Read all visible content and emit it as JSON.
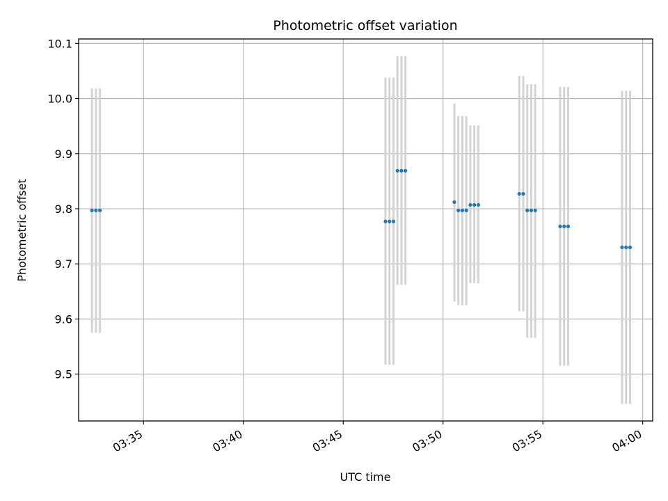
{
  "chart_data": {
    "type": "scatter",
    "title": "Photometric offset variation",
    "xlabel": "UTC time",
    "ylabel": "Photometric offset",
    "x_unit": "UTC time (hh:mm)",
    "xlim": [
      "03:31:45",
      "04:00:30"
    ],
    "ylim": [
      9.415,
      10.108
    ],
    "x_ticks": [
      "03:35",
      "03:40",
      "03:45",
      "03:50",
      "03:55",
      "04:00"
    ],
    "y_ticks": [
      9.5,
      9.6,
      9.7,
      9.8,
      9.9,
      10.0,
      10.1
    ],
    "y_tick_labels": [
      "9.5",
      "9.6",
      "9.7",
      "9.8",
      "9.9",
      "10.0",
      "10.1"
    ],
    "grid": true,
    "colors": {
      "points": "#1f77b4",
      "errorbars": "#d3d3d3",
      "grid": "#b0b0b0"
    },
    "points": [
      {
        "x": "03:32:25",
        "y": 9.797,
        "ylow": 9.575,
        "yhigh": 10.018
      },
      {
        "x": "03:32:37",
        "y": 9.797,
        "ylow": 9.575,
        "yhigh": 10.018
      },
      {
        "x": "03:32:49",
        "y": 9.797,
        "ylow": 9.575,
        "yhigh": 10.018
      },
      {
        "x": "03:47:07",
        "y": 9.777,
        "ylow": 9.517,
        "yhigh": 10.038
      },
      {
        "x": "03:47:19",
        "y": 9.777,
        "ylow": 9.517,
        "yhigh": 10.038
      },
      {
        "x": "03:47:31",
        "y": 9.777,
        "ylow": 9.517,
        "yhigh": 10.038
      },
      {
        "x": "03:47:43",
        "y": 9.869,
        "ylow": 9.662,
        "yhigh": 10.077
      },
      {
        "x": "03:47:55",
        "y": 9.869,
        "ylow": 9.662,
        "yhigh": 10.077
      },
      {
        "x": "03:48:07",
        "y": 9.869,
        "ylow": 9.662,
        "yhigh": 10.077
      },
      {
        "x": "03:50:34",
        "y": 9.812,
        "ylow": 9.632,
        "yhigh": 9.991
      },
      {
        "x": "03:50:46",
        "y": 9.797,
        "ylow": 9.625,
        "yhigh": 9.968
      },
      {
        "x": "03:50:58",
        "y": 9.797,
        "ylow": 9.625,
        "yhigh": 9.968
      },
      {
        "x": "03:51:10",
        "y": 9.797,
        "ylow": 9.625,
        "yhigh": 9.968
      },
      {
        "x": "03:51:22",
        "y": 9.807,
        "ylow": 9.665,
        "yhigh": 9.951
      },
      {
        "x": "03:51:34",
        "y": 9.807,
        "ylow": 9.665,
        "yhigh": 9.951
      },
      {
        "x": "03:51:46",
        "y": 9.807,
        "ylow": 9.665,
        "yhigh": 9.951
      },
      {
        "x": "03:53:49",
        "y": 9.827,
        "ylow": 9.614,
        "yhigh": 10.041
      },
      {
        "x": "03:54:01",
        "y": 9.827,
        "ylow": 9.614,
        "yhigh": 10.041
      },
      {
        "x": "03:54:13",
        "y": 9.797,
        "ylow": 9.566,
        "yhigh": 10.026
      },
      {
        "x": "03:54:25",
        "y": 9.797,
        "ylow": 9.566,
        "yhigh": 10.026
      },
      {
        "x": "03:54:37",
        "y": 9.797,
        "ylow": 9.566,
        "yhigh": 10.026
      },
      {
        "x": "03:55:52",
        "y": 9.768,
        "ylow": 9.515,
        "yhigh": 10.021
      },
      {
        "x": "03:56:04",
        "y": 9.768,
        "ylow": 9.515,
        "yhigh": 10.021
      },
      {
        "x": "03:56:16",
        "y": 9.768,
        "ylow": 9.515,
        "yhigh": 10.021
      },
      {
        "x": "03:58:58",
        "y": 9.73,
        "ylow": 9.446,
        "yhigh": 10.014
      },
      {
        "x": "03:59:10",
        "y": 9.73,
        "ylow": 9.446,
        "yhigh": 10.014
      },
      {
        "x": "03:59:22",
        "y": 9.73,
        "ylow": 9.446,
        "yhigh": 10.014
      }
    ]
  }
}
